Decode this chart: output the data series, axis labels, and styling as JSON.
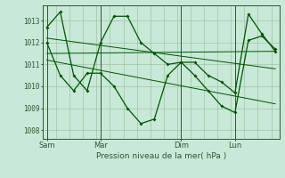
{
  "bg_color": "#c8e8d8",
  "line_color": "#005500",
  "grid_color": "#99bb99",
  "axis_color": "#335533",
  "xlabel": "Pression niveau de la mer( hPa )",
  "xtick_labels": [
    "Sam",
    "Mar",
    "Dim",
    "Lun"
  ],
  "xtick_positions": [
    0,
    4,
    10,
    14
  ],
  "yticks": [
    1008,
    1009,
    1010,
    1011,
    1012,
    1013
  ],
  "ylim": [
    1007.6,
    1013.7
  ],
  "xlim": [
    -0.3,
    17.3
  ],
  "vlines": [
    0,
    4,
    10,
    14
  ],
  "series1_x": [
    0,
    1,
    2,
    3,
    4,
    5,
    6,
    7,
    8,
    9,
    10,
    11,
    12,
    13,
    14,
    15,
    16,
    17
  ],
  "series1_y": [
    1012.7,
    1013.4,
    1010.5,
    1009.8,
    1012.0,
    1013.2,
    1013.2,
    1012.0,
    1011.5,
    1011.0,
    1011.1,
    1011.1,
    1010.5,
    1010.2,
    1009.7,
    1013.3,
    1012.4,
    1011.6
  ],
  "series2_x": [
    0,
    1,
    2,
    3,
    4,
    5,
    6,
    7,
    8,
    9,
    10,
    11,
    12,
    13,
    14,
    15,
    16,
    17
  ],
  "series2_y": [
    1012.0,
    1010.5,
    1009.8,
    1010.6,
    1010.6,
    1010.0,
    1009.0,
    1008.3,
    1008.5,
    1010.5,
    1011.1,
    1010.5,
    1009.8,
    1009.1,
    1008.8,
    1012.1,
    1012.3,
    1011.7
  ],
  "trend1_x": [
    0,
    17
  ],
  "trend1_y": [
    1012.2,
    1010.8
  ],
  "trend2_x": [
    0,
    17
  ],
  "trend2_y": [
    1011.5,
    1011.6
  ],
  "trend3_x": [
    0,
    17
  ],
  "trend3_y": [
    1011.2,
    1009.2
  ]
}
